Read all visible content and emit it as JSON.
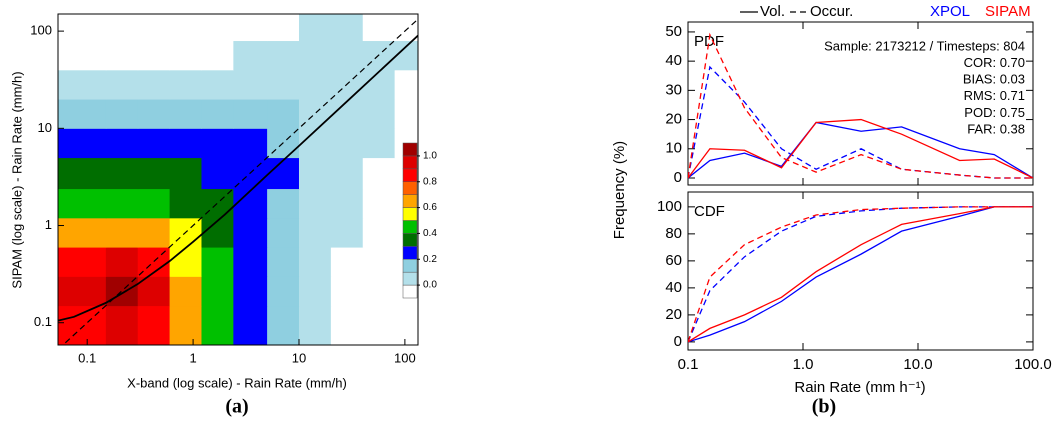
{
  "chart_data": [
    {
      "type": "heatmap",
      "panel_label": "(a)",
      "xlabel": "X-band (log scale) - Rain Rate (mm/h)",
      "ylabel": "SIPAM (log scale) - Rain Rate (mm/h)",
      "log_x": true,
      "log_y": true,
      "xlim": [
        0.053,
        133
      ],
      "ylim": [
        0.059,
        150
      ],
      "xticks": [
        0.1,
        1,
        10,
        100
      ],
      "yticks": [
        0.1,
        1,
        10,
        100
      ],
      "x_edges": [
        0.053,
        0.15,
        0.3,
        0.6,
        1.2,
        2.4,
        5,
        10,
        20,
        40,
        80,
        133
      ],
      "y_edges": [
        0.059,
        0.15,
        0.3,
        0.6,
        1.2,
        2.4,
        5,
        10,
        20,
        40,
        80,
        150
      ],
      "z": [
        [
          0.9,
          0.95,
          0.9,
          0.65,
          0.45,
          0.25,
          0.15,
          0.05,
          0,
          0,
          0
        ],
        [
          0.95,
          1.05,
          0.95,
          0.65,
          0.45,
          0.25,
          0.15,
          0.05,
          0,
          0,
          0
        ],
        [
          0.9,
          0.95,
          0.85,
          0.55,
          0.45,
          0.25,
          0.15,
          0.05,
          0,
          0,
          0
        ],
        [
          0.65,
          0.65,
          0.65,
          0.55,
          0.35,
          0.25,
          0.15,
          0.05,
          0.05,
          0,
          0
        ],
        [
          0.45,
          0.45,
          0.45,
          0.4,
          0.35,
          0.25,
          0.15,
          0.05,
          0.05,
          0,
          0
        ],
        [
          0.35,
          0.35,
          0.35,
          0.35,
          0.3,
          0.25,
          0.25,
          0.1,
          0.05,
          0,
          0
        ],
        [
          0.25,
          0.25,
          0.25,
          0.25,
          0.25,
          0.25,
          0.2,
          0.1,
          0.05,
          0.05,
          0
        ],
        [
          0.15,
          0.15,
          0.15,
          0.15,
          0.15,
          0.15,
          0.15,
          0.1,
          0.05,
          0.05,
          0
        ],
        [
          0.05,
          0.05,
          0.05,
          0.05,
          0.05,
          0.1,
          0.1,
          0.1,
          0.05,
          0.05,
          0
        ],
        [
          0,
          0,
          0,
          0,
          0,
          0.05,
          0.05,
          0.05,
          0.05,
          0.05,
          0.05
        ],
        [
          0,
          0,
          0,
          0,
          0,
          0,
          0,
          0.05,
          0.05,
          0,
          0
        ]
      ],
      "colorbar": {
        "levels": [
          -0.1,
          0,
          0.1,
          0.2,
          0.3,
          0.4,
          0.5,
          0.6,
          0.7,
          0.8,
          0.9,
          1.0,
          1.1
        ],
        "colors": [
          "#ffffff",
          "#b4e0ea",
          "#8fcfe0",
          "#0000ff",
          "#006e00",
          "#00c000",
          "#ffff00",
          "#ffa500",
          "#ff6000",
          "#ff0000",
          "#dd0000",
          "#a00000"
        ],
        "ticks": [
          {
            "value": 0,
            "label": "0.0"
          },
          0.2,
          0.4,
          0.6,
          0.8,
          {
            "value": 1,
            "label": "1.0"
          }
        ]
      },
      "lines": [
        {
          "dash": "solid",
          "color": "#000000",
          "x": [
            0.053,
            0.075,
            0.15,
            0.3,
            0.6,
            1,
            2,
            5,
            10,
            30,
            133
          ],
          "y": [
            0.105,
            0.115,
            0.16,
            0.25,
            0.43,
            0.68,
            1.3,
            3.3,
            6.6,
            20,
            90
          ]
        },
        {
          "dash": "dashed",
          "color": "#000000",
          "x": [
            0.053,
            133
          ],
          "y": [
            0.053,
            133
          ]
        }
      ]
    },
    {
      "type": "line",
      "panel_label": "(b)",
      "xlabel": "Rain Rate (mm h⁻¹)",
      "ylabel": "Frequency (%)",
      "log_x": true,
      "xlim": [
        0.1,
        100
      ],
      "xticks": [
        0.1,
        {
          "value": 1,
          "label": "1.0"
        },
        {
          "value": 10,
          "label": "10.0"
        },
        {
          "value": 100,
          "label": "100.0"
        }
      ],
      "x": [
        0.1,
        0.155,
        0.31,
        0.65,
        1.3,
        3.2,
        7.2,
        23,
        46,
        100
      ],
      "legend": {
        "styles": [
          {
            "name": "Vol.",
            "dash": "solid"
          },
          {
            "name": "Occur.",
            "dash": "dashed"
          }
        ],
        "series": [
          {
            "name": "XPOL",
            "color": "#0000ff"
          },
          {
            "name": "SIPAM",
            "color": "#ff0000"
          }
        ]
      },
      "subplots": [
        {
          "label": "PDF",
          "ylim": [
            -2.4,
            53.4
          ],
          "yticks": [
            0,
            10,
            20,
            30,
            40,
            50
          ],
          "annotations": [
            "Sample: 2173212 / Timesteps: 804",
            "COR: 0.70",
            "BIAS: 0.03",
            "RMS: 0.71",
            "POD: 0.75",
            "FAR: 0.38"
          ],
          "series": [
            {
              "vol": [
                0,
                6,
                8.5,
                4,
                19,
                16,
                17.5,
                10,
                8,
                0
              ],
              "occur": [
                0,
                38,
                26,
                10,
                3,
                10,
                3,
                1,
                0,
                0
              ]
            },
            {
              "vol": [
                0,
                10,
                9.5,
                3.5,
                19,
                20,
                15,
                6,
                6.5,
                0
              ],
              "occur": [
                0,
                49,
                24,
                7,
                2,
                8,
                3,
                1,
                0,
                0
              ]
            }
          ]
        },
        {
          "label": "CDF",
          "ylim": [
            -6,
            111
          ],
          "yticks": [
            0,
            20,
            40,
            60,
            80,
            100
          ],
          "series": [
            {
              "vol": [
                0,
                5,
                15,
                30,
                48,
                65,
                82,
                93,
                100,
                100
              ],
              "occur": [
                0,
                38,
                63,
                82,
                93,
                97,
                99,
                100,
                100,
                100
              ]
            },
            {
              "vol": [
                0,
                10,
                20,
                33,
                52,
                72,
                87,
                95,
                100,
                100
              ],
              "occur": [
                0,
                48,
                72,
                85,
                94,
                98,
                99,
                100,
                100,
                100
              ]
            }
          ]
        }
      ]
    }
  ]
}
